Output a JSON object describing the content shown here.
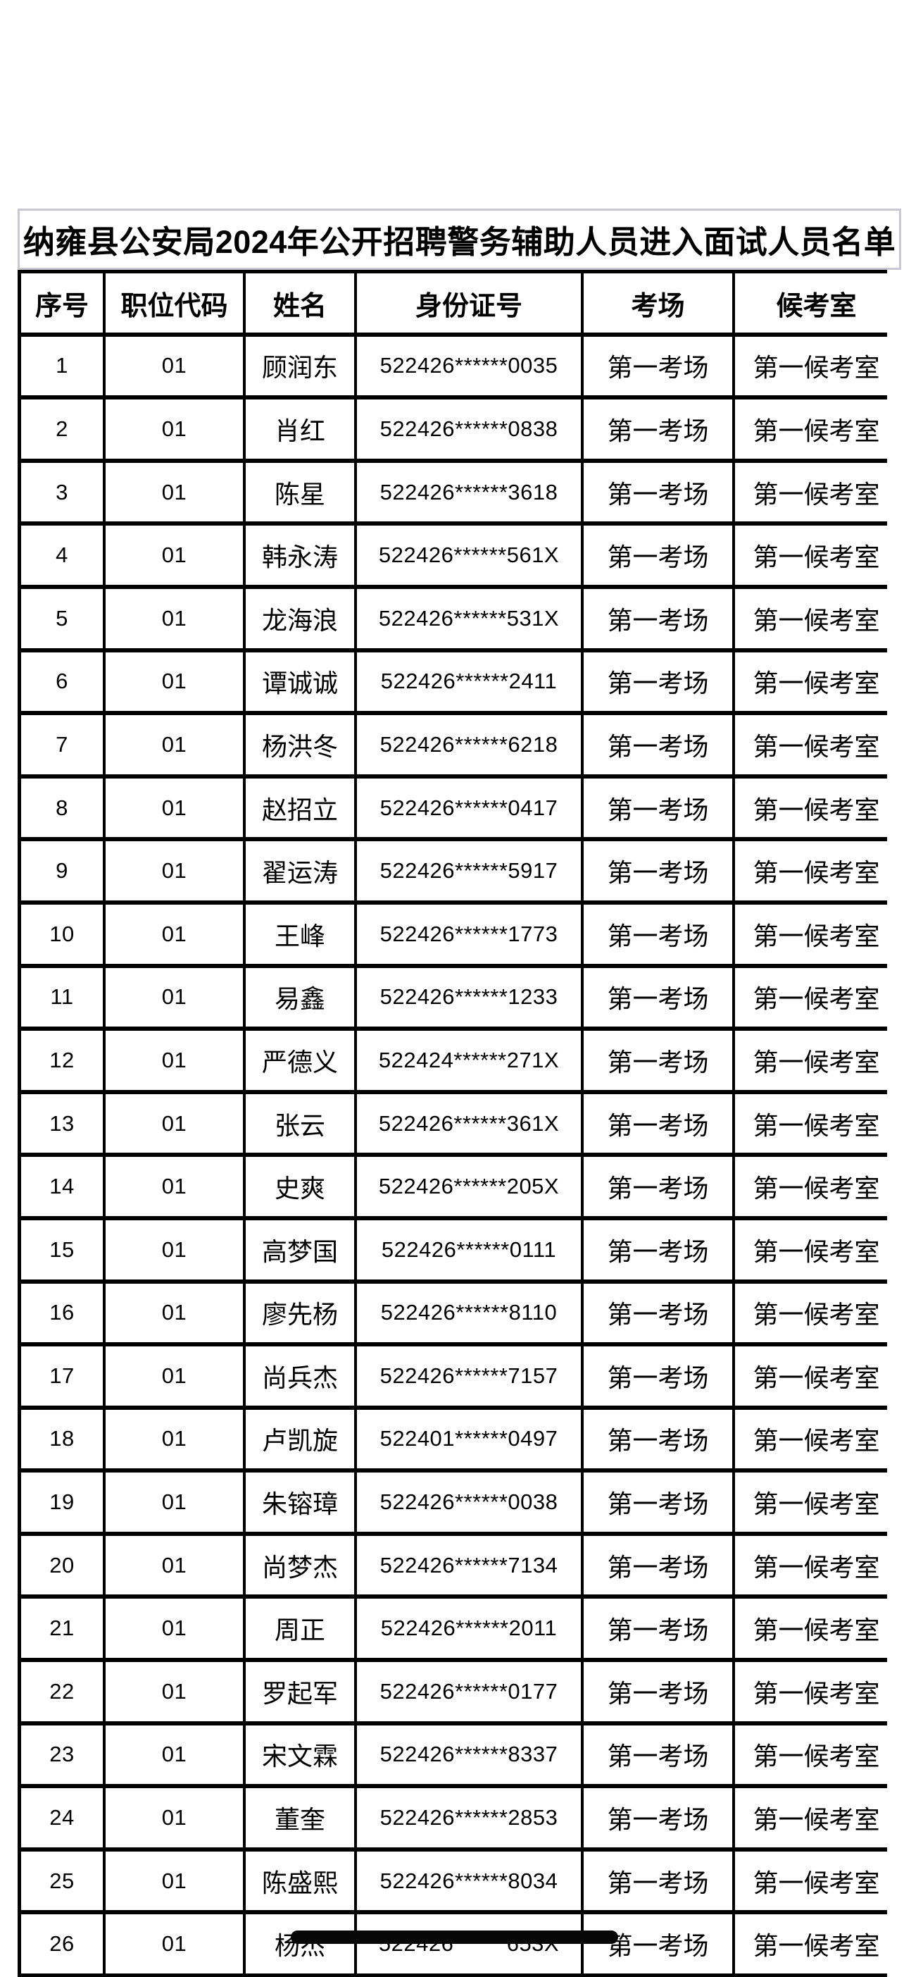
{
  "title": "纳雍县公安局2024年公开招聘警务辅助人员进入面试人员名单",
  "colors": {
    "page_background": "#ffffff",
    "grid_border": "#000000",
    "title_frame": "#c9c7d0",
    "redaction_bar": "#070707",
    "text": "#000000"
  },
  "table": {
    "headers": [
      "序号",
      "职位代码",
      "姓名",
      "身份证号",
      "考场",
      "候考室"
    ],
    "rows": [
      {
        "no": "1",
        "code": "01",
        "name": "顾润东",
        "id": "522426******0035",
        "room": "第一考场",
        "wait": "第一候考室"
      },
      {
        "no": "2",
        "code": "01",
        "name": "肖红",
        "id": "522426******0838",
        "room": "第一考场",
        "wait": "第一候考室"
      },
      {
        "no": "3",
        "code": "01",
        "name": "陈星",
        "id": "522426******3618",
        "room": "第一考场",
        "wait": "第一候考室"
      },
      {
        "no": "4",
        "code": "01",
        "name": "韩永涛",
        "id": "522426******561X",
        "room": "第一考场",
        "wait": "第一候考室"
      },
      {
        "no": "5",
        "code": "01",
        "name": "龙海浪",
        "id": "522426******531X",
        "room": "第一考场",
        "wait": "第一候考室"
      },
      {
        "no": "6",
        "code": "01",
        "name": "谭诚诚",
        "id": "522426******2411",
        "room": "第一考场",
        "wait": "第一候考室"
      },
      {
        "no": "7",
        "code": "01",
        "name": "杨洪冬",
        "id": "522426******6218",
        "room": "第一考场",
        "wait": "第一候考室"
      },
      {
        "no": "8",
        "code": "01",
        "name": "赵招立",
        "id": "522426******0417",
        "room": "第一考场",
        "wait": "第一候考室"
      },
      {
        "no": "9",
        "code": "01",
        "name": "翟运涛",
        "id": "522426******5917",
        "room": "第一考场",
        "wait": "第一候考室"
      },
      {
        "no": "10",
        "code": "01",
        "name": "王峰",
        "id": "522426******1773",
        "room": "第一考场",
        "wait": "第一候考室"
      },
      {
        "no": "11",
        "code": "01",
        "name": "易鑫",
        "id": "522426******1233",
        "room": "第一考场",
        "wait": "第一候考室"
      },
      {
        "no": "12",
        "code": "01",
        "name": "严德义",
        "id": "522424******271X",
        "room": "第一考场",
        "wait": "第一候考室"
      },
      {
        "no": "13",
        "code": "01",
        "name": "张云",
        "id": "522426******361X",
        "room": "第一考场",
        "wait": "第一候考室"
      },
      {
        "no": "14",
        "code": "01",
        "name": "史爽",
        "id": "522426******205X",
        "room": "第一考场",
        "wait": "第一候考室"
      },
      {
        "no": "15",
        "code": "01",
        "name": "高梦国",
        "id": "522426******0111",
        "room": "第一考场",
        "wait": "第一候考室"
      },
      {
        "no": "16",
        "code": "01",
        "name": "廖先杨",
        "id": "522426******8110",
        "room": "第一考场",
        "wait": "第一候考室"
      },
      {
        "no": "17",
        "code": "01",
        "name": "尚兵杰",
        "id": "522426******7157",
        "room": "第一考场",
        "wait": "第一候考室"
      },
      {
        "no": "18",
        "code": "01",
        "name": "卢凯旋",
        "id": "522401******0497",
        "room": "第一考场",
        "wait": "第一候考室"
      },
      {
        "no": "19",
        "code": "01",
        "name": "朱镕璋",
        "id": "522426******0038",
        "room": "第一考场",
        "wait": "第一候考室"
      },
      {
        "no": "20",
        "code": "01",
        "name": "尚梦杰",
        "id": "522426******7134",
        "room": "第一考场",
        "wait": "第一候考室"
      },
      {
        "no": "21",
        "code": "01",
        "name": "周正",
        "id": "522426******2011",
        "room": "第一考场",
        "wait": "第一候考室"
      },
      {
        "no": "22",
        "code": "01",
        "name": "罗起军",
        "id": "522426******0177",
        "room": "第一考场",
        "wait": "第一候考室"
      },
      {
        "no": "23",
        "code": "01",
        "name": "宋文霖",
        "id": "522426******8337",
        "room": "第一考场",
        "wait": "第一候考室"
      },
      {
        "no": "24",
        "code": "01",
        "name": "董奎",
        "id": "522426******2853",
        "room": "第一考场",
        "wait": "第一候考室"
      },
      {
        "no": "25",
        "code": "01",
        "name": "陈盛熙",
        "id": "522426******8034",
        "room": "第一考场",
        "wait": "第一候考室"
      },
      {
        "no": "26",
        "code": "01",
        "name": "杨杰",
        "id": "522426******653X",
        "room": "第一考场",
        "wait": "第一候考室"
      }
    ]
  },
  "annotations": {
    "redaction_bar": {
      "covers": "row 26 name and id",
      "color": "#070707"
    }
  }
}
